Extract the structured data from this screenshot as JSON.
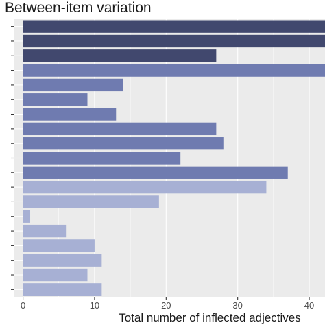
{
  "chart_data": {
    "type": "bar",
    "orientation": "horizontal",
    "title": "Between-item variation",
    "xlabel": "Total number of inflected adjectives",
    "ylabel": "",
    "xlim": [
      -1.3,
      42.2
    ],
    "x_ticks": [
      0,
      10,
      20,
      30,
      40
    ],
    "y_tick_labels_visible": false,
    "grid": true,
    "values": [
      42.5,
      42.5,
      27,
      42.5,
      14,
      9,
      13,
      27,
      28,
      22,
      37,
      34,
      19,
      1,
      6,
      10,
      11,
      9,
      11
    ],
    "bar_colors": [
      "#41486e",
      "#41486e",
      "#41486e",
      "#6f7bb0",
      "#6f7bb0",
      "#6f7bb0",
      "#6f7bb0",
      "#6f7bb0",
      "#6f7bb0",
      "#6f7bb0",
      "#6f7bb0",
      "#a7b0d4",
      "#a7b0d4",
      "#a7b0d4",
      "#a7b0d4",
      "#a7b0d4",
      "#a7b0d4",
      "#a7b0d4",
      "#a7b0d4"
    ],
    "panel_color": "#ebebeb",
    "grid_color": "#ffffff"
  }
}
